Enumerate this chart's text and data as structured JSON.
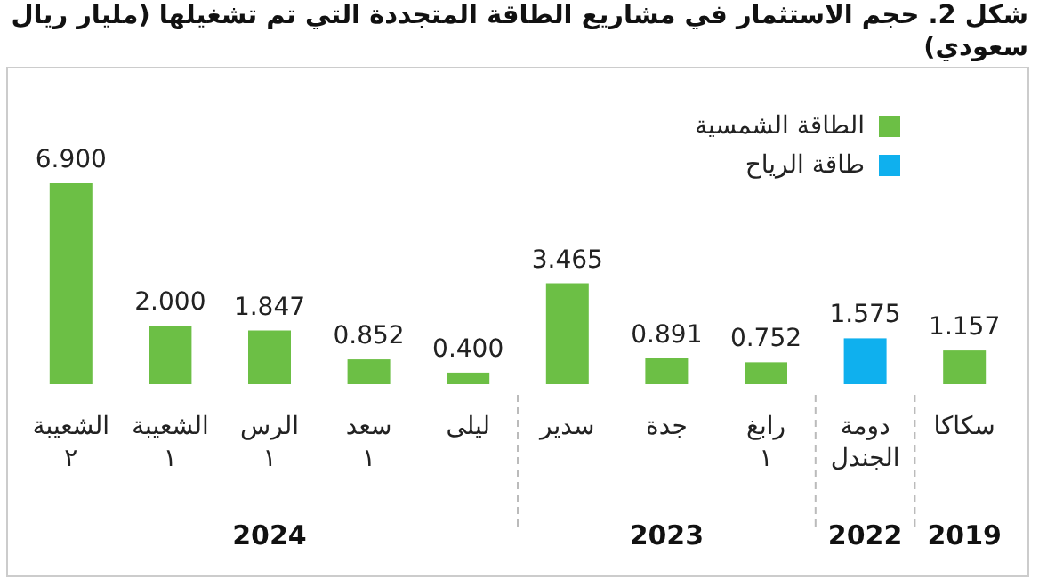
{
  "chart_data": {
    "type": "bar",
    "title": "شكل 2. حجم الاستثمار في مشاريع الطاقة المتجددة التي تم تشغيلها (مليار ريال سعودي)",
    "categories": [
      "الشعيبة\n٢",
      "الشعيبة\n١",
      "الرس\n١",
      "سعد\n١",
      "ليلى",
      "سدير",
      "جدة",
      "رابغ\n١",
      "دومة\nالجندل",
      "سكاكا"
    ],
    "series": [
      {
        "name": "الطاقة الشمسية",
        "color": "#6cbf45",
        "values": [
          6.9,
          2.0,
          1.847,
          0.852,
          0.4,
          3.465,
          0.891,
          0.752,
          null,
          1.157
        ],
        "value_labels": [
          "6.900",
          "2.000",
          "1.847",
          "0.852",
          "0.400",
          "3.465",
          "0.891",
          "0.752",
          null,
          "1.157"
        ]
      },
      {
        "name": "طاقة الرياح",
        "color": "#0fb0ee",
        "values": [
          null,
          null,
          null,
          null,
          null,
          null,
          null,
          null,
          1.575,
          null
        ],
        "value_labels": [
          null,
          null,
          null,
          null,
          null,
          null,
          null,
          null,
          "1.575",
          null
        ]
      }
    ],
    "annotations": [
      "2024",
      "2023",
      "2022",
      "2019"
    ],
    "legend": "top right",
    "grid": false
  }
}
